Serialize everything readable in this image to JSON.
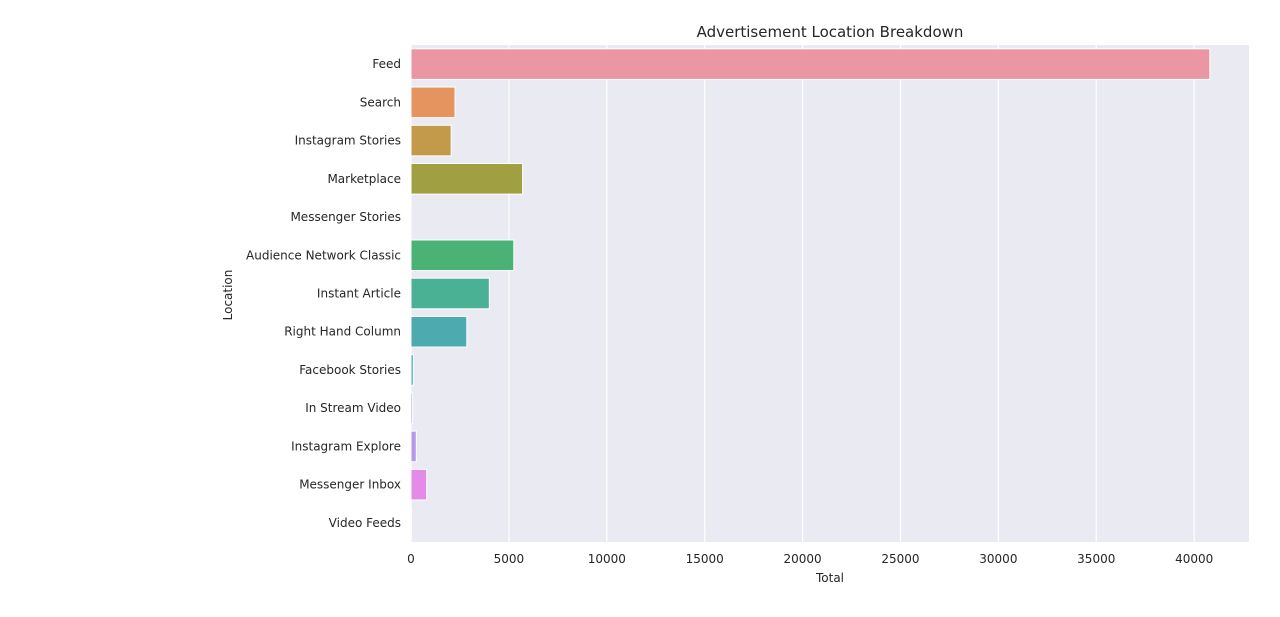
{
  "chart_data": {
    "type": "bar",
    "orientation": "horizontal",
    "title": "Advertisement Location Breakdown",
    "xlabel": "Total",
    "ylabel": "Location",
    "xlim": [
      0,
      42800
    ],
    "xticks": [
      0,
      5000,
      10000,
      15000,
      20000,
      25000,
      30000,
      35000,
      40000
    ],
    "grid": true,
    "categories": [
      "Feed",
      "Search",
      "Instagram Stories",
      "Marketplace",
      "Messenger Stories",
      "Audience Network Classic",
      "Instant Article",
      "Right Hand Column",
      "Facebook Stories",
      "In Stream Video",
      "Instagram Explore",
      "Messenger Inbox",
      "Video Feeds"
    ],
    "values": [
      40800,
      2250,
      2050,
      5700,
      0,
      5250,
      4000,
      2850,
      120,
      80,
      270,
      800,
      20
    ],
    "colors": [
      "#ea96a3",
      "#e5935f",
      "#c29a49",
      "#a0a042",
      "#ffffff",
      "#4ab274",
      "#4ab195",
      "#4dabb0",
      "#52b0c8",
      "#a8a7e8",
      "#b898e8",
      "#e48ae8",
      "#f0b0e0"
    ],
    "plot_background": "#eaeaf2",
    "grid_color": "#ffffff"
  }
}
